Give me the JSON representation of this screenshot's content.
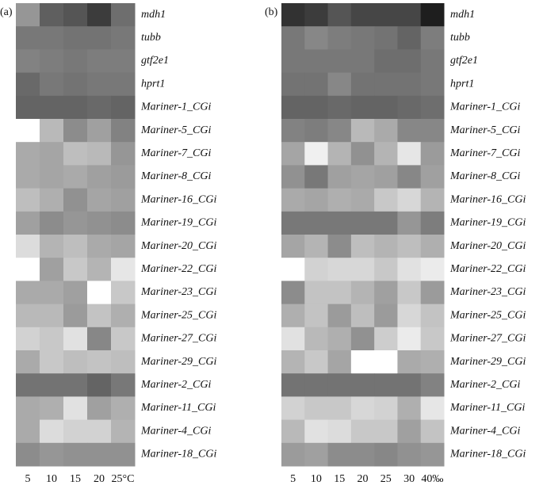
{
  "chart_data": [
    {
      "type": "heatmap",
      "title": "(a)",
      "rows": [
        "mdh1",
        "tubb",
        "gtf2e1",
        "hprt1",
        "Mariner-1_CGi",
        "Mariner-5_CGi",
        "Mariner-7_CGi",
        "Mariner-8_CGi",
        "Mariner-16_CGi",
        "Mariner-19_CGi",
        "Mariner-20_CGi",
        "Mariner-22_CGi",
        "Mariner-23_CGi",
        "Mariner-25_CGi",
        "Mariner-27_CGi",
        "Mariner-29_CGi",
        "Mariner-2_CGi",
        "Mariner-11_CGi",
        "Mariner-4_CGi",
        "Mariner-18_CGi"
      ],
      "categories": [
        "5",
        "10",
        "15",
        "20",
        "25°C"
      ],
      "values": [
        [
          150,
          95,
          85,
          60,
          110
        ],
        [
          120,
          120,
          115,
          115,
          120
        ],
        [
          130,
          125,
          120,
          125,
          125
        ],
        [
          105,
          120,
          115,
          120,
          120
        ],
        [
          100,
          100,
          100,
          105,
          100
        ],
        [
          255,
          185,
          140,
          160,
          130
        ],
        [
          170,
          165,
          190,
          185,
          150
        ],
        [
          170,
          165,
          170,
          160,
          155
        ],
        [
          190,
          175,
          145,
          165,
          160
        ],
        [
          160,
          140,
          150,
          145,
          140
        ],
        [
          220,
          180,
          190,
          170,
          165
        ],
        [
          255,
          160,
          200,
          180,
          230
        ],
        [
          170,
          170,
          160,
          255,
          200
        ],
        [
          185,
          185,
          155,
          195,
          175
        ],
        [
          210,
          200,
          225,
          135,
          200
        ],
        [
          170,
          200,
          190,
          195,
          190
        ],
        [
          115,
          115,
          115,
          100,
          120
        ],
        [
          170,
          175,
          225,
          160,
          175
        ],
        [
          170,
          220,
          210,
          210,
          180
        ],
        [
          140,
          150,
          145,
          145,
          145
        ]
      ]
    },
    {
      "type": "heatmap",
      "title": "(b)",
      "rows": [
        "mdh1",
        "tubb",
        "gtf2e1",
        "hprt1",
        "Mariner-1_CGi",
        "Mariner-5_CGi",
        "Mariner-7_CGi",
        "Mariner-8_CGi",
        "Mariner-16_CGi",
        "Mariner-19_CGi",
        "Mariner-20_CGi",
        "Mariner-22_CGi",
        "Mariner-23_CGi",
        "Mariner-25_CGi",
        "Mariner-27_CGi",
        "Mariner-29_CGi",
        "Mariner-2_CGi",
        "Mariner-11_CGi",
        "Mariner-4_CGi",
        "Mariner-18_CGi"
      ],
      "categories": [
        "5",
        "10",
        "15",
        "20",
        "25",
        "30",
        "40‰"
      ],
      "values": [
        [
          50,
          60,
          85,
          70,
          70,
          70,
          30
        ],
        [
          120,
          135,
          125,
          120,
          115,
          100,
          125
        ],
        [
          120,
          120,
          120,
          120,
          110,
          110,
          120
        ],
        [
          115,
          115,
          135,
          115,
          115,
          115,
          120
        ],
        [
          100,
          100,
          105,
          100,
          100,
          105,
          110
        ],
        [
          130,
          125,
          135,
          185,
          170,
          135,
          135
        ],
        [
          165,
          240,
          180,
          145,
          180,
          230,
          155
        ],
        [
          145,
          120,
          160,
          165,
          160,
          135,
          160
        ],
        [
          170,
          165,
          175,
          170,
          200,
          215,
          180
        ],
        [
          120,
          120,
          120,
          120,
          120,
          150,
          125
        ],
        [
          165,
          180,
          140,
          190,
          180,
          190,
          175
        ],
        [
          255,
          210,
          215,
          215,
          200,
          225,
          235
        ],
        [
          140,
          195,
          195,
          180,
          160,
          200,
          155
        ],
        [
          175,
          195,
          155,
          190,
          155,
          215,
          195
        ],
        [
          225,
          185,
          175,
          145,
          205,
          235,
          200
        ],
        [
          180,
          200,
          165,
          255,
          255,
          170,
          175
        ],
        [
          115,
          115,
          115,
          115,
          115,
          115,
          130
        ],
        [
          210,
          200,
          200,
          215,
          210,
          175,
          230
        ],
        [
          185,
          225,
          220,
          200,
          200,
          160,
          195
        ],
        [
          155,
          160,
          140,
          140,
          135,
          145,
          150
        ]
      ]
    }
  ]
}
